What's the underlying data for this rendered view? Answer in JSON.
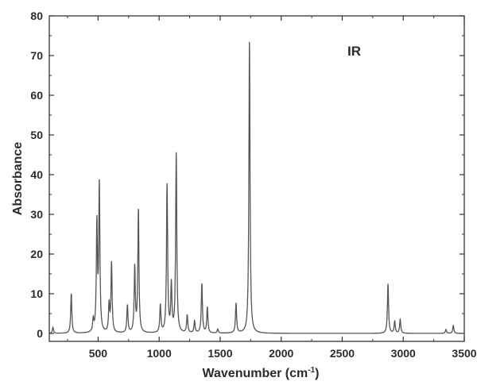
{
  "chart_data": {
    "type": "line",
    "title": "",
    "annotation": "IR",
    "xlabel": "Wavenumber (cm",
    "xlabel_superscript": "-1",
    "xlabel_suffix": ")",
    "ylabel": "Absorbance",
    "xlim": [
      100,
      3500
    ],
    "ylim": [
      -2,
      80
    ],
    "x_ticks": [
      {
        "value": 500,
        "label": "500"
      },
      {
        "value": 1000,
        "label": "1000"
      },
      {
        "value": 1500,
        "label": "1500"
      },
      {
        "value": 2000,
        "label": "2000"
      },
      {
        "value": 2500,
        "label": "2500"
      },
      {
        "value": 3000,
        "label": "3000"
      },
      {
        "value": 3500,
        "label": "3500"
      }
    ],
    "y_ticks": [
      {
        "value": 0,
        "label": "0"
      },
      {
        "value": 10,
        "label": "10"
      },
      {
        "value": 20,
        "label": "20"
      },
      {
        "value": 30,
        "label": "30"
      },
      {
        "value": 40,
        "label": "40"
      },
      {
        "value": 50,
        "label": "50"
      },
      {
        "value": 60,
        "label": "60"
      },
      {
        "value": 70,
        "label": "70"
      },
      {
        "value": 80,
        "label": "80"
      }
    ],
    "grid": false,
    "line_color": "#555555",
    "peaks": [
      {
        "x": 130,
        "y": 1.5
      },
      {
        "x": 280,
        "y": 10
      },
      {
        "x": 460,
        "y": 3
      },
      {
        "x": 490,
        "y": 27
      },
      {
        "x": 510,
        "y": 37
      },
      {
        "x": 590,
        "y": 7
      },
      {
        "x": 610,
        "y": 17.5
      },
      {
        "x": 740,
        "y": 7
      },
      {
        "x": 800,
        "y": 16.5
      },
      {
        "x": 830,
        "y": 31
      },
      {
        "x": 1010,
        "y": 7
      },
      {
        "x": 1065,
        "y": 37.5
      },
      {
        "x": 1100,
        "y": 12
      },
      {
        "x": 1140,
        "y": 45.5
      },
      {
        "x": 1230,
        "y": 4.5
      },
      {
        "x": 1290,
        "y": 3
      },
      {
        "x": 1350,
        "y": 12.5
      },
      {
        "x": 1395,
        "y": 6.5
      },
      {
        "x": 1480,
        "y": 1
      },
      {
        "x": 1630,
        "y": 7.5
      },
      {
        "x": 1740,
        "y": 74
      },
      {
        "x": 2875,
        "y": 12.5
      },
      {
        "x": 2930,
        "y": 3
      },
      {
        "x": 2975,
        "y": 3.5
      },
      {
        "x": 3350,
        "y": 1
      },
      {
        "x": 3410,
        "y": 2
      }
    ]
  }
}
